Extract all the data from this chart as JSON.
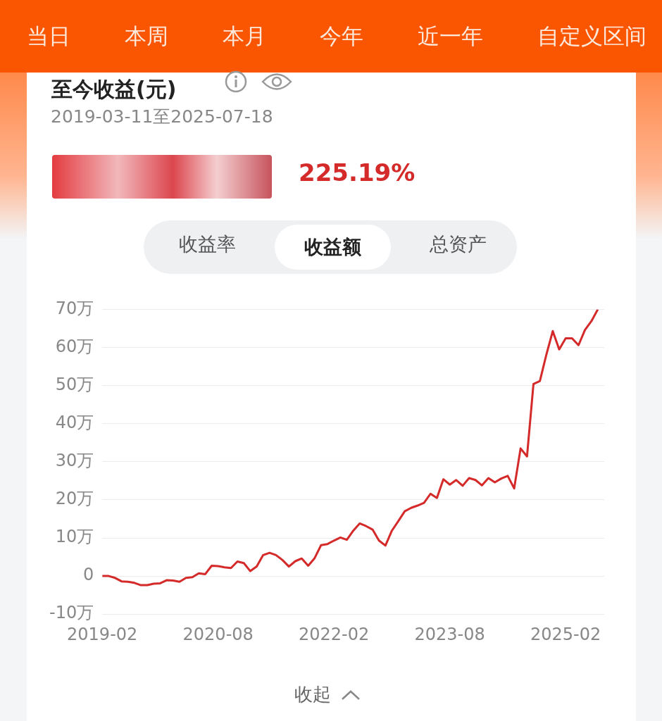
{
  "chart_data": {
    "type": "line",
    "title": "至今收益(元)",
    "subtitle": "2019-03-11至2025-07-18",
    "annotations": [
      "当日",
      "本周",
      "本月",
      "今年",
      "近一年",
      "自定义区间",
      "225.19%",
      "收益率",
      "收益额",
      "总资产",
      "收起"
    ],
    "x": [
      "2019-02",
      "2019-03",
      "2019-04",
      "2019-05",
      "2019-06",
      "2019-07",
      "2019-08",
      "2019-09",
      "2019-10",
      "2019-11",
      "2019-12",
      "2020-01",
      "2020-02",
      "2020-03",
      "2020-04",
      "2020-05",
      "2020-06",
      "2020-07",
      "2020-08",
      "2020-09",
      "2020-10",
      "2020-11",
      "2020-12",
      "2021-01",
      "2021-02",
      "2021-03",
      "2021-04",
      "2021-05",
      "2021-06",
      "2021-07",
      "2021-08",
      "2021-09",
      "2021-10",
      "2021-11",
      "2021-12",
      "2022-01",
      "2022-02",
      "2022-03",
      "2022-04",
      "2022-05",
      "2022-06",
      "2022-07",
      "2022-08",
      "2022-09",
      "2022-10",
      "2022-11",
      "2022-12",
      "2023-01",
      "2023-02",
      "2023-03",
      "2023-04",
      "2023-05",
      "2023-06",
      "2023-07",
      "2023-08",
      "2023-09",
      "2023-10",
      "2023-11",
      "2023-12",
      "2024-01",
      "2024-02",
      "2024-03",
      "2024-04",
      "2024-05",
      "2024-06",
      "2024-07",
      "2024-08",
      "2024-09",
      "2024-10",
      "2024-11",
      "2024-12",
      "2025-01",
      "2025-02",
      "2025-03",
      "2025-04",
      "2025-05",
      "2025-06",
      "2025-07"
    ],
    "series": [
      {
        "color": "#d42a2a",
        "values": [
          0,
          0,
          -0.5,
          -1.4,
          -1.5,
          -1.8,
          -2.4,
          -2.4,
          -2.0,
          -1.9,
          -1.1,
          -1.2,
          -1.5,
          -0.5,
          -0.3,
          0.7,
          0.5,
          2.7,
          2.6,
          2.3,
          2.1,
          3.8,
          3.4,
          1.3,
          2.5,
          5.5,
          6.1,
          5.5,
          4.2,
          2.5,
          3.9,
          4.6,
          2.7,
          4.7,
          8.1,
          8.4,
          9.3,
          10.1,
          9.5,
          11.9,
          13.8,
          13.1,
          12.2,
          9.3,
          8.0,
          11.9,
          14.4,
          17.0,
          17.9,
          18.5,
          19.2,
          21.6,
          20.5,
          25.4,
          24.0,
          25.2,
          23.7,
          25.7,
          25.2,
          23.8,
          25.7,
          24.6,
          25.6,
          26.3,
          23.0,
          33.5,
          31.4,
          50.4,
          51.2,
          58.1,
          64.3,
          59.5,
          62.4,
          62.4,
          60.6,
          64.6,
          66.9,
          70.0
        ]
      }
    ],
    "xlim": [
      "2019-02",
      "2025-08"
    ],
    "xticks": [
      "2019-02",
      "2020-08",
      "2022-02",
      "2023-08",
      "2025-02"
    ],
    "ylim": [
      -10,
      70
    ],
    "yticks": [
      {
        "value": -10,
        "label": "-10万"
      },
      {
        "value": 0,
        "label": "0"
      },
      {
        "value": 10,
        "label": "10万"
      },
      {
        "value": 20,
        "label": "20万"
      },
      {
        "value": 30,
        "label": "30万"
      },
      {
        "value": 40,
        "label": "40万"
      },
      {
        "value": 50,
        "label": "50万"
      },
      {
        "value": 60,
        "label": "60万"
      },
      {
        "value": 70,
        "label": "70万"
      }
    ],
    "grid": "y",
    "legend": false,
    "marker": "none",
    "line_style": "solid"
  }
}
